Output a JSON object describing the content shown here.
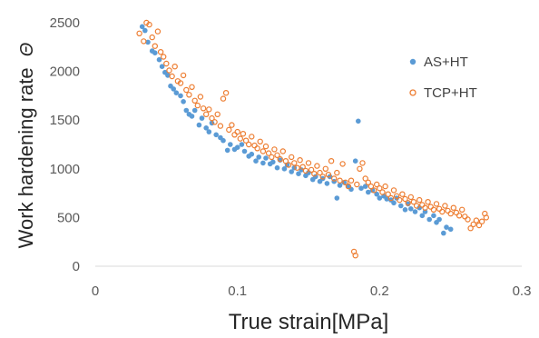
{
  "chart_data": {
    "type": "scatter",
    "xlabel": "True strain[MPa]",
    "ylabel": "Work hardening rate",
    "ylabel_symbol": "Θ",
    "xlim": [
      0,
      0.3
    ],
    "ylim": [
      0,
      2500
    ],
    "x_ticks": [
      "0",
      "0.1",
      "0.2",
      "0.3"
    ],
    "y_ticks": [
      "0",
      "500",
      "1000",
      "1500",
      "2000",
      "2500"
    ],
    "grid": false,
    "legend_position": "right",
    "series": [
      {
        "name": "AS+HT",
        "color": "#5B9BD5",
        "marker": "filled-circle",
        "points": [
          [
            0.033,
            2460
          ],
          [
            0.035,
            2420
          ],
          [
            0.037,
            2300
          ],
          [
            0.04,
            2210
          ],
          [
            0.042,
            2190
          ],
          [
            0.045,
            2120
          ],
          [
            0.047,
            2050
          ],
          [
            0.049,
            1990
          ],
          [
            0.051,
            1960
          ],
          [
            0.053,
            1850
          ],
          [
            0.055,
            1820
          ],
          [
            0.057,
            1780
          ],
          [
            0.06,
            1750
          ],
          [
            0.062,
            1690
          ],
          [
            0.064,
            1600
          ],
          [
            0.066,
            1560
          ],
          [
            0.068,
            1540
          ],
          [
            0.07,
            1600
          ],
          [
            0.073,
            1450
          ],
          [
            0.075,
            1520
          ],
          [
            0.078,
            1420
          ],
          [
            0.08,
            1380
          ],
          [
            0.082,
            1470
          ],
          [
            0.085,
            1350
          ],
          [
            0.088,
            1320
          ],
          [
            0.09,
            1290
          ],
          [
            0.093,
            1190
          ],
          [
            0.095,
            1250
          ],
          [
            0.098,
            1200
          ],
          [
            0.1,
            1220
          ],
          [
            0.103,
            1250
          ],
          [
            0.105,
            1180
          ],
          [
            0.108,
            1130
          ],
          [
            0.11,
            1150
          ],
          [
            0.113,
            1080
          ],
          [
            0.115,
            1120
          ],
          [
            0.118,
            1060
          ],
          [
            0.12,
            1110
          ],
          [
            0.123,
            1050
          ],
          [
            0.125,
            1070
          ],
          [
            0.128,
            1010
          ],
          [
            0.13,
            1090
          ],
          [
            0.133,
            1000
          ],
          [
            0.135,
            1040
          ],
          [
            0.138,
            970
          ],
          [
            0.14,
            1010
          ],
          [
            0.143,
            950
          ],
          [
            0.145,
            990
          ],
          [
            0.148,
            930
          ],
          [
            0.15,
            960
          ],
          [
            0.153,
            890
          ],
          [
            0.155,
            920
          ],
          [
            0.158,
            870
          ],
          [
            0.16,
            900
          ],
          [
            0.163,
            850
          ],
          [
            0.165,
            920
          ],
          [
            0.168,
            870
          ],
          [
            0.17,
            700
          ],
          [
            0.172,
            830
          ],
          [
            0.175,
            860
          ],
          [
            0.178,
            820
          ],
          [
            0.18,
            790
          ],
          [
            0.183,
            1080
          ],
          [
            0.185,
            1490
          ],
          [
            0.187,
            800
          ],
          [
            0.19,
            820
          ],
          [
            0.192,
            760
          ],
          [
            0.195,
            780
          ],
          [
            0.198,
            740
          ],
          [
            0.2,
            700
          ],
          [
            0.203,
            720
          ],
          [
            0.205,
            690
          ],
          [
            0.208,
            680
          ],
          [
            0.21,
            650
          ],
          [
            0.212,
            700
          ],
          [
            0.215,
            620
          ],
          [
            0.218,
            580
          ],
          [
            0.22,
            640
          ],
          [
            0.222,
            590
          ],
          [
            0.225,
            560
          ],
          [
            0.228,
            600
          ],
          [
            0.23,
            520
          ],
          [
            0.232,
            560
          ],
          [
            0.235,
            480
          ],
          [
            0.238,
            520
          ],
          [
            0.24,
            450
          ],
          [
            0.242,
            480
          ],
          [
            0.245,
            340
          ],
          [
            0.247,
            400
          ],
          [
            0.25,
            380
          ]
        ]
      },
      {
        "name": "TCP+HT",
        "color": "#ED7D31",
        "marker": "open-circle",
        "points": [
          [
            0.031,
            2390
          ],
          [
            0.034,
            2310
          ],
          [
            0.036,
            2500
          ],
          [
            0.038,
            2480
          ],
          [
            0.04,
            2350
          ],
          [
            0.042,
            2260
          ],
          [
            0.044,
            2410
          ],
          [
            0.046,
            2200
          ],
          [
            0.048,
            2150
          ],
          [
            0.05,
            2080
          ],
          [
            0.052,
            2010
          ],
          [
            0.054,
            1950
          ],
          [
            0.056,
            2050
          ],
          [
            0.058,
            1900
          ],
          [
            0.06,
            1880
          ],
          [
            0.062,
            1960
          ],
          [
            0.064,
            1810
          ],
          [
            0.066,
            1760
          ],
          [
            0.068,
            1840
          ],
          [
            0.07,
            1700
          ],
          [
            0.072,
            1650
          ],
          [
            0.074,
            1740
          ],
          [
            0.076,
            1620
          ],
          [
            0.078,
            1560
          ],
          [
            0.08,
            1610
          ],
          [
            0.082,
            1520
          ],
          [
            0.084,
            1480
          ],
          [
            0.086,
            1560
          ],
          [
            0.088,
            1440
          ],
          [
            0.09,
            1720
          ],
          [
            0.092,
            1780
          ],
          [
            0.094,
            1400
          ],
          [
            0.096,
            1450
          ],
          [
            0.098,
            1350
          ],
          [
            0.1,
            1380
          ],
          [
            0.102,
            1310
          ],
          [
            0.104,
            1360
          ],
          [
            0.106,
            1290
          ],
          [
            0.108,
            1250
          ],
          [
            0.11,
            1330
          ],
          [
            0.112,
            1240
          ],
          [
            0.114,
            1210
          ],
          [
            0.116,
            1280
          ],
          [
            0.118,
            1180
          ],
          [
            0.12,
            1230
          ],
          [
            0.122,
            1160
          ],
          [
            0.124,
            1120
          ],
          [
            0.126,
            1200
          ],
          [
            0.128,
            1140
          ],
          [
            0.13,
            1100
          ],
          [
            0.132,
            1180
          ],
          [
            0.134,
            1080
          ],
          [
            0.136,
            1040
          ],
          [
            0.138,
            1120
          ],
          [
            0.14,
            1060
          ],
          [
            0.142,
            1010
          ],
          [
            0.144,
            1090
          ],
          [
            0.146,
            1020
          ],
          [
            0.148,
            980
          ],
          [
            0.15,
            1060
          ],
          [
            0.152,
            990
          ],
          [
            0.154,
            950
          ],
          [
            0.156,
            1030
          ],
          [
            0.158,
            960
          ],
          [
            0.16,
            920
          ],
          [
            0.162,
            1000
          ],
          [
            0.164,
            940
          ],
          [
            0.166,
            1080
          ],
          [
            0.168,
            900
          ],
          [
            0.17,
            960
          ],
          [
            0.172,
            880
          ],
          [
            0.174,
            1050
          ],
          [
            0.176,
            860
          ],
          [
            0.178,
            820
          ],
          [
            0.18,
            880
          ],
          [
            0.182,
            150
          ],
          [
            0.183,
            110
          ],
          [
            0.184,
            840
          ],
          [
            0.186,
            1000
          ],
          [
            0.188,
            1060
          ],
          [
            0.19,
            900
          ],
          [
            0.192,
            860
          ],
          [
            0.194,
            820
          ],
          [
            0.196,
            780
          ],
          [
            0.198,
            840
          ],
          [
            0.2,
            800
          ],
          [
            0.202,
            760
          ],
          [
            0.204,
            820
          ],
          [
            0.206,
            740
          ],
          [
            0.208,
            700
          ],
          [
            0.21,
            780
          ],
          [
            0.212,
            720
          ],
          [
            0.214,
            680
          ],
          [
            0.216,
            740
          ],
          [
            0.218,
            690
          ],
          [
            0.22,
            650
          ],
          [
            0.222,
            710
          ],
          [
            0.224,
            660
          ],
          [
            0.226,
            620
          ],
          [
            0.228,
            680
          ],
          [
            0.23,
            630
          ],
          [
            0.232,
            600
          ],
          [
            0.234,
            660
          ],
          [
            0.236,
            610
          ],
          [
            0.238,
            580
          ],
          [
            0.24,
            640
          ],
          [
            0.242,
            590
          ],
          [
            0.244,
            560
          ],
          [
            0.246,
            620
          ],
          [
            0.248,
            570
          ],
          [
            0.25,
            540
          ],
          [
            0.252,
            600
          ],
          [
            0.254,
            550
          ],
          [
            0.256,
            520
          ],
          [
            0.258,
            580
          ],
          [
            0.26,
            510
          ],
          [
            0.262,
            480
          ],
          [
            0.264,
            390
          ],
          [
            0.266,
            430
          ],
          [
            0.268,
            470
          ],
          [
            0.27,
            420
          ],
          [
            0.272,
            460
          ],
          [
            0.274,
            540
          ],
          [
            0.275,
            500
          ]
        ]
      }
    ]
  }
}
